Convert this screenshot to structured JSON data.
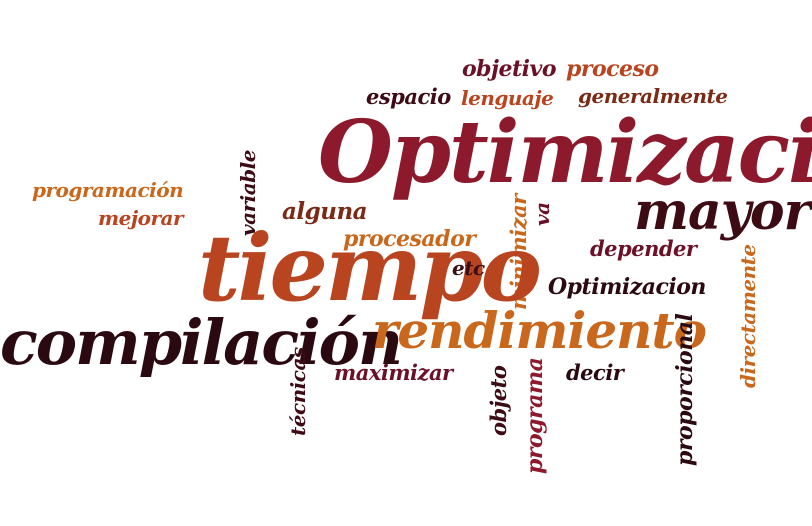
{
  "words": {
    "optimizacion_big": "Optimización",
    "tiempo": "tiempo",
    "compilacion": "compilación",
    "rendimiento": "rendimiento",
    "mayor": "mayor",
    "objetivo": "objetivo",
    "proceso": "proceso",
    "espacio": "espacio",
    "lenguaje": "lenguaje",
    "generalmente": "generalmente",
    "programacion": "programación",
    "mejorar": "mejorar",
    "variable": "variable",
    "alguna": "alguna",
    "procesador": "procesador",
    "minimizar": "minimizar",
    "va": "va",
    "depender": "depender",
    "directamente": "directamente",
    "etc": "etc",
    "optimizacion_small": "Optimizacion",
    "tecnicas": "técnicas",
    "maximizar": "maximizar",
    "objeto": "objeto",
    "programa": "programa",
    "decir": "decir",
    "proporcional": "proporcional"
  },
  "colors": {
    "maroon": "#6b1127",
    "crimson": "#8c1a2c",
    "darkred": "#3d0b14",
    "rust": "#b8451f",
    "orange": "#c9681c",
    "brown": "#7a2a15",
    "dark": "#2a0a10"
  }
}
